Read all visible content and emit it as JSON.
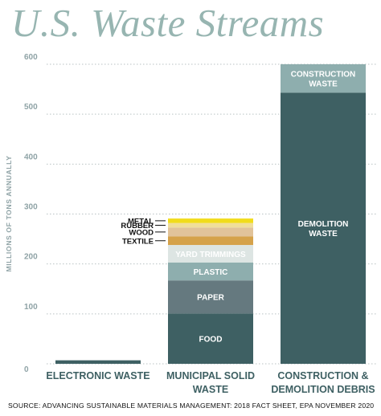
{
  "title": "U.S. Waste Streams",
  "source": "SOURCE: ADVANCING SUSTAINABLE MATERIALS MANAGEMENT: 2018 FACT SHEET, EPA NOVEMBER 2020",
  "chart_data": {
    "type": "bar",
    "stacked": true,
    "ylabel": "MILLIONS OF TONS ANNUALLY",
    "ylim": [
      0,
      600
    ],
    "yticks": [
      0,
      100,
      200,
      300,
      400,
      500,
      600
    ],
    "grid": true,
    "categories": [
      {
        "lines": [
          "ELECTRONIC WASTE"
        ]
      },
      {
        "lines": [
          "MUNICIPAL SOLID",
          "WASTE"
        ]
      },
      {
        "lines": [
          "CONSTRUCTION &",
          "DEMOLITION DEBRIS"
        ]
      }
    ],
    "bars": [
      {
        "category": "ELECTRONIC WASTE",
        "segments": [
          {
            "label": "",
            "value": 7,
            "color": "#3e6063"
          }
        ]
      },
      {
        "category": "MUNICIPAL SOLID WASTE",
        "segments": [
          {
            "label": "FOOD",
            "value": 101,
            "color": "#3e6063",
            "inside": true
          },
          {
            "label": "PAPER",
            "value": 66,
            "color": "#65797f",
            "inside": true
          },
          {
            "label": "PLASTIC",
            "value": 36,
            "color": "#8eaeae",
            "inside": true
          },
          {
            "label": "YARD TRIMMINGS",
            "value": 35,
            "color": "#dde5e3",
            "inside": true
          },
          {
            "label": "TEXTILE",
            "value": 17,
            "color": "#d5a24a",
            "inside": false
          },
          {
            "label": "WOOD",
            "value": 18,
            "color": "#e1c39a",
            "inside": false
          },
          {
            "label": "RUBBER",
            "value": 9,
            "color": "#f0de9a",
            "inside": false
          },
          {
            "label": "METAL",
            "value": 9,
            "color": "#f1dc1c",
            "inside": false
          }
        ]
      },
      {
        "category": "CONSTRUCTION & DEMOLITION DEBRIS",
        "segments": [
          {
            "label": "DEMOLITION WASTE",
            "lines": [
              "DEMOLITION",
              "WASTE"
            ],
            "value": 543,
            "color": "#3e6063",
            "inside": true
          },
          {
            "label": "CONSTRUCTION WASTE",
            "lines": [
              "CONSTRUCTION",
              "WASTE"
            ],
            "value": 57,
            "color": "#8eaeae",
            "inside": true
          }
        ]
      }
    ]
  }
}
